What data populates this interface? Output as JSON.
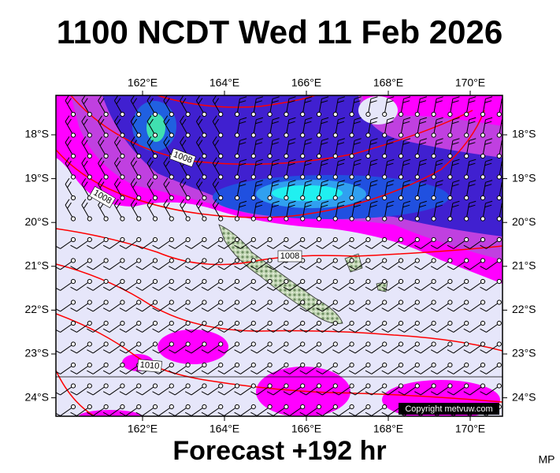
{
  "title": "1100 NCDT Wed 11 Feb 2026",
  "map": {
    "lon_labels": [
      "162°E",
      "164°E",
      "166°E",
      "168°E",
      "170°E"
    ],
    "lat_labels": [
      "18°S",
      "19°S",
      "20°S",
      "21°S",
      "22°S",
      "23°S",
      "24°S"
    ],
    "isobar_labels": [
      "1008",
      "1008",
      "1008",
      "1010"
    ],
    "copyright": "Copyright metvuw.com"
  },
  "footer": "Forecast +192 hr",
  "corner": "MP"
}
